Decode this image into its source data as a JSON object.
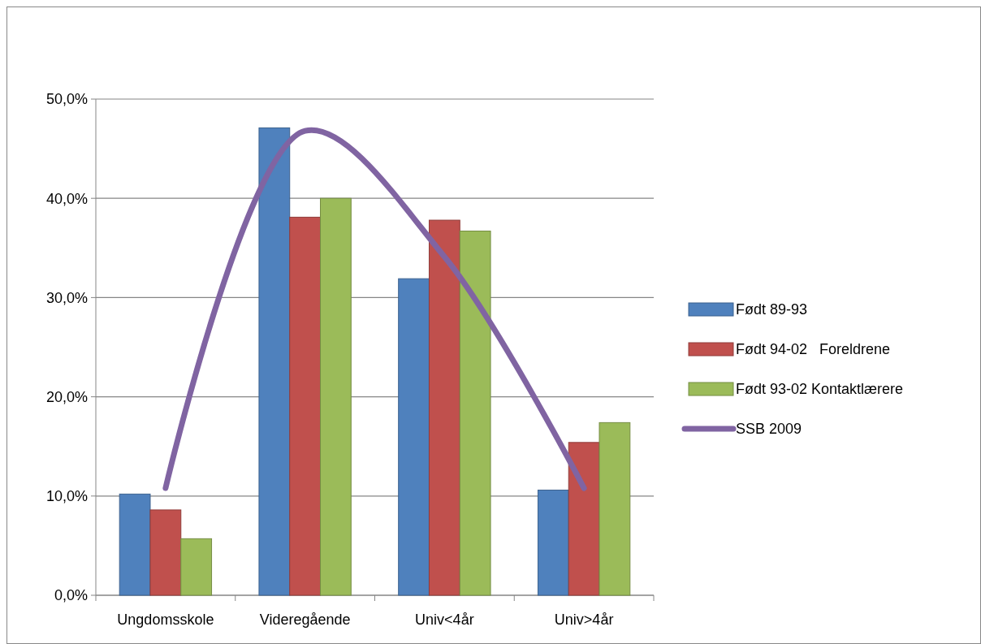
{
  "chart_data": {
    "type": "bar",
    "categories": [
      "Ungdomsskole",
      "Videregående",
      "Univ<4år",
      "Univ>4år"
    ],
    "series": [
      {
        "name": "Født 89-93",
        "color": "#4f81bd",
        "values": [
          10.2,
          47.1,
          31.9,
          10.6
        ]
      },
      {
        "name": "Født 94-02   Foreldrene",
        "color": "#c0504d",
        "values": [
          8.6,
          38.1,
          37.8,
          15.4
        ]
      },
      {
        "name": "Født 93-02 Kontaktlærere",
        "color": "#9bbb59",
        "values": [
          5.7,
          40.0,
          36.7,
          17.4
        ]
      },
      {
        "name": "SSB 2009",
        "type": "line",
        "color": "#8064a2",
        "values": [
          10.8,
          46.8,
          34.1,
          10.8
        ]
      }
    ],
    "ylim": [
      0,
      50
    ],
    "yticks": [
      {
        "value": 0,
        "label": "0,0%"
      },
      {
        "value": 10,
        "label": "10,0%"
      },
      {
        "value": 20,
        "label": "20,0%"
      },
      {
        "value": 30,
        "label": "30,0%"
      },
      {
        "value": 40,
        "label": "40,0%"
      },
      {
        "value": 50,
        "label": "50,0%"
      }
    ],
    "grid": "y",
    "legend": "right",
    "marker": "none"
  }
}
